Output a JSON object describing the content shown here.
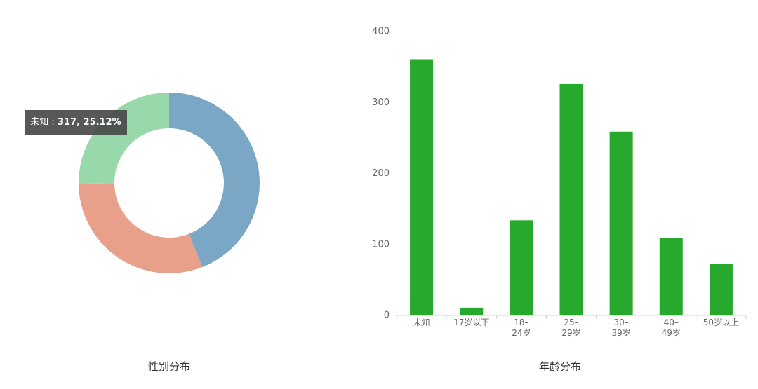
{
  "chart_data": [
    {
      "type": "pie",
      "title": "性别分布",
      "categories": [
        null,
        null,
        null
      ],
      "values": [
        556,
        389,
        317
      ],
      "colors": [
        "#7ba7c7",
        "#e8a08a",
        "#98d8aa"
      ],
      "donut": true,
      "tooltip": {
        "label": "未知 :",
        "value": "317, 25.12%"
      }
    },
    {
      "type": "bar",
      "title": "年龄分布",
      "categories": [
        "未知",
        "17岁以下",
        "18–\n24岁",
        "25–\n29岁",
        "30–\n39岁",
        "40–\n49岁",
        "50岁以上"
      ],
      "values": [
        361,
        11,
        134,
        326,
        259,
        109,
        73
      ],
      "color": "#27a92d",
      "ylim": [
        0,
        400
      ],
      "yticks": [
        0,
        100,
        200,
        300,
        400
      ],
      "grid": false
    }
  ]
}
